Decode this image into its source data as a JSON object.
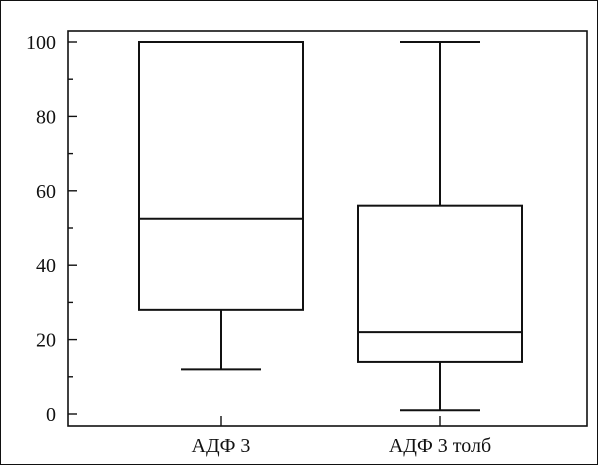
{
  "chart_data": {
    "type": "box",
    "title": "",
    "xlabel": "",
    "ylabel": "",
    "ylim": [
      0,
      100
    ],
    "yticks": [
      0,
      20,
      40,
      60,
      80,
      100
    ],
    "yticks_minor": [
      10,
      30,
      50,
      70,
      90
    ],
    "grid": false,
    "categories": [
      "АДФ 3",
      "АДФ 3 толб"
    ],
    "boxes": [
      {
        "category": "АДФ 3",
        "min": 12,
        "q1": 28,
        "median": 52.5,
        "q3": 100,
        "max": 100
      },
      {
        "category": "АДФ 3 толб",
        "min": 1,
        "q1": 14,
        "median": 22,
        "q3": 56,
        "max": 100
      }
    ]
  }
}
